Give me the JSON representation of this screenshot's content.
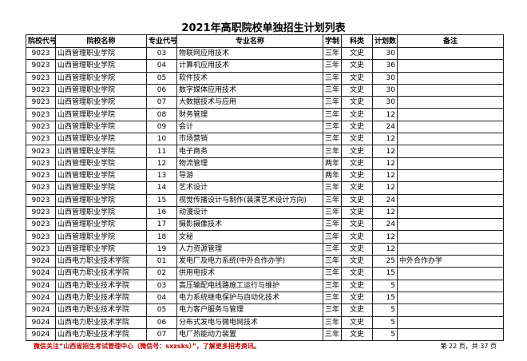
{
  "title": "2021年高职院校单独招生计划列表",
  "columns": [
    "院校代号",
    "院校名称",
    "专业代号",
    "专业名称",
    "学制",
    "科类",
    "计划数",
    "备注"
  ],
  "rows": [
    [
      "9023",
      "山西管理职业学院",
      "03",
      "物联网应用技术",
      "三年",
      "文史",
      "30",
      ""
    ],
    [
      "9023",
      "山西管理职业学院",
      "04",
      "计算机应用技术",
      "三年",
      "文史",
      "36",
      ""
    ],
    [
      "9023",
      "山西管理职业学院",
      "05",
      "软件技术",
      "三年",
      "文史",
      "30",
      ""
    ],
    [
      "9023",
      "山西管理职业学院",
      "06",
      "数字媒体应用技术",
      "三年",
      "文史",
      "30",
      ""
    ],
    [
      "9023",
      "山西管理职业学院",
      "07",
      "大数据技术与应用",
      "三年",
      "文史",
      "30",
      ""
    ],
    [
      "9023",
      "山西管理职业学院",
      "08",
      "财务管理",
      "三年",
      "文史",
      "12",
      ""
    ],
    [
      "9023",
      "山西管理职业学院",
      "09",
      "会计",
      "三年",
      "文史",
      "24",
      ""
    ],
    [
      "9023",
      "山西管理职业学院",
      "10",
      "市场营销",
      "三年",
      "文史",
      "12",
      ""
    ],
    [
      "9023",
      "山西管理职业学院",
      "11",
      "电子商务",
      "三年",
      "文史",
      "12",
      ""
    ],
    [
      "9023",
      "山西管理职业学院",
      "12",
      "物流管理",
      "两年",
      "文史",
      "12",
      ""
    ],
    [
      "9023",
      "山西管理职业学院",
      "13",
      "导游",
      "两年",
      "文史",
      "12",
      ""
    ],
    [
      "9023",
      "山西管理职业学院",
      "14",
      "艺术设计",
      "三年",
      "文史",
      "12",
      ""
    ],
    [
      "9023",
      "山西管理职业学院",
      "15",
      "视觉传播设计与制作(装潢艺术设计方向)",
      "三年",
      "文史",
      "24",
      ""
    ],
    [
      "9023",
      "山西管理职业学院",
      "16",
      "动漫设计",
      "三年",
      "文史",
      "12",
      ""
    ],
    [
      "9023",
      "山西管理职业学院",
      "17",
      "摄影摄像技术",
      "三年",
      "文史",
      "24",
      ""
    ],
    [
      "9023",
      "山西管理职业学院",
      "18",
      "文秘",
      "三年",
      "文史",
      "12",
      ""
    ],
    [
      "9023",
      "山西管理职业学院",
      "19",
      "人力资源管理",
      "三年",
      "文史",
      "12",
      ""
    ],
    [
      "9024",
      "山西电力职业技术学院",
      "01",
      "发电厂及电力系统(中外合作办学)",
      "三年",
      "文史",
      "25",
      "中外合作办学"
    ],
    [
      "9024",
      "山西电力职业技术学院",
      "02",
      "供用电技术",
      "三年",
      "文史",
      "15",
      ""
    ],
    [
      "9024",
      "山西电力职业技术学院",
      "03",
      "高压输配电线路施工运行与维护",
      "三年",
      "文史",
      "5",
      ""
    ],
    [
      "9024",
      "山西电力职业技术学院",
      "04",
      "电力系统继电保护与自动化技术",
      "三年",
      "文史",
      "15",
      ""
    ],
    [
      "9024",
      "山西电力职业技术学院",
      "05",
      "电力客户服务与管理",
      "三年",
      "文史",
      "5",
      ""
    ],
    [
      "9024",
      "山西电力职业技术学院",
      "06",
      "分布式发电与微电网技术",
      "三年",
      "文史",
      "5",
      ""
    ],
    [
      "9024",
      "山西电力职业技术学院",
      "07",
      "电厂热能动力装置",
      "三年",
      "文史",
      "5",
      ""
    ]
  ],
  "footer": {
    "note": "微信关注“山西省招生考试管理中心（微信号：sxzsks）”，了解更多招考资讯。",
    "page": "第 22 页，共 37 页"
  }
}
